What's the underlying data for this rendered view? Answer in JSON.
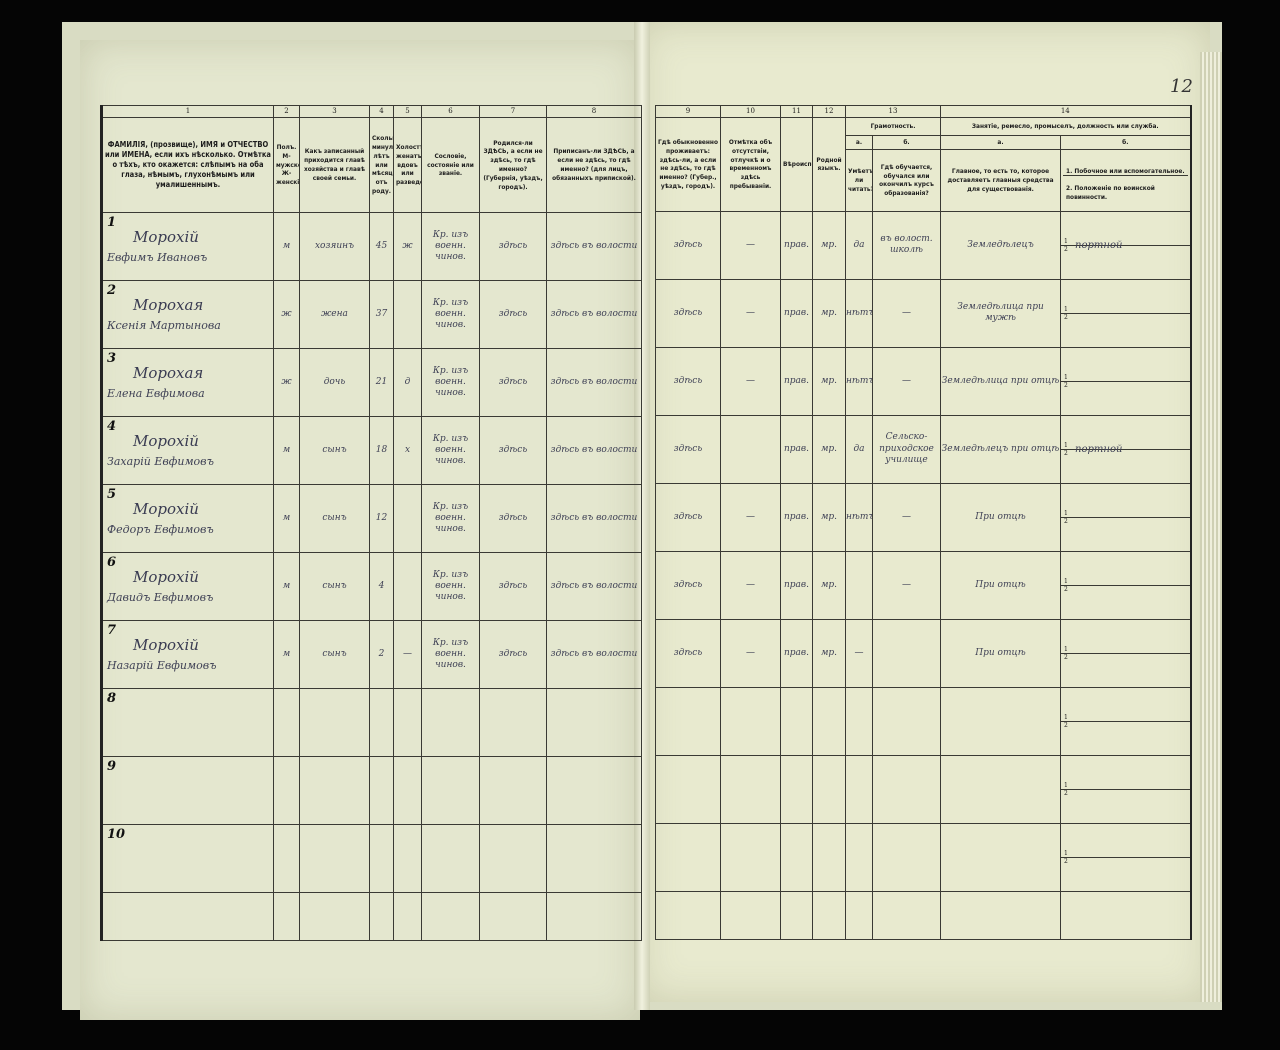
{
  "page_number": "12",
  "headers": {
    "left": [
      {
        "num": "1",
        "text": "ФАМИЛІЯ, (прозвище), ИМЯ и ОТЧЕСТВО или ИМЕНА, если ихъ нѣсколько. Отмѣтка о тѣхъ, кто окажется: слѣпымъ на оба глаза, нѣмымъ, глухонѣмымъ или умалишеннымъ."
      },
      {
        "num": "2",
        "text": "Полъ. М-мужской. Ж-женскій."
      },
      {
        "num": "3",
        "text": "Какъ записанный приходится главѣ хозяйства и главѣ своей семьи."
      },
      {
        "num": "4",
        "text": "Сколько минуло лѣтъ или мѣсяцевъ отъ роду."
      },
      {
        "num": "5",
        "text": "Холостъ, женатъ, вдовъ или разведенъ."
      },
      {
        "num": "6",
        "text": "Сословіе, состояніе или званіе."
      },
      {
        "num": "7",
        "text": "Родился-ли ЗДѢСЬ, а если не здѣсь, то гдѣ именно? (Губернія, уѣздъ, городъ)."
      },
      {
        "num": "8",
        "text": "Приписанъ-ли ЗДѢСЬ, а если не здѣсь, то гдѣ именно? (для лицъ, обязанныхъ припиской)."
      }
    ],
    "right": {
      "col9": {
        "num": "9",
        "text": "Гдѣ обыкновенно проживаетъ: здѣсь-ли, а если не здѣсь, то гдѣ именно? (Губер., уѣздъ, городъ)."
      },
      "col10": {
        "num": "10",
        "text": "Отмѣтка объ отсутствіи, отлучкѣ и о временномъ здѣсь пребываніи."
      },
      "col11": {
        "num": "11",
        "text": "Вѣроисповѣданіе."
      },
      "col12": {
        "num": "12",
        "text": "Родной языкъ."
      },
      "col13": {
        "num": "13",
        "title": "Грамотность.",
        "a_label": "а.",
        "a_text": "Умѣетъ-ли читать?",
        "b_label": "б.",
        "b_text": "Гдѣ обучается, обучался или окончилъ курсъ образованія?"
      },
      "col14": {
        "num": "14",
        "title": "Занятіе, ремесло, промыселъ, должность или служба.",
        "a_label": "а.",
        "a_text": "Главное, то есть то, которое доставляетъ главныя средства для существованія.",
        "b_label": "б.",
        "b1_text": "1. Побочное или вспомогательное.",
        "b2_text": "2. Положеніе по воинской повинности."
      }
    }
  },
  "rows": [
    {
      "n": "1",
      "surname": "Морохій",
      "name": "Евфимъ Ивановъ",
      "sex": "м",
      "relation": "хозяинъ",
      "age": "45",
      "marital": "ж",
      "estate": "Кр. изъ военн. чинов.",
      "born": "здѣсь",
      "registered": "здѣсь въ волости",
      "resides": "здѣсь",
      "absence": "—",
      "religion": "прав.",
      "language": "мр.",
      "reads": "да",
      "school": "въ волост. школѣ",
      "occupation_main": "Земледѣлецъ",
      "occupation_side": "портной",
      "military": ""
    },
    {
      "n": "2",
      "surname": "Морохая",
      "name": "Ксенія Мартынова",
      "sex": "ж",
      "relation": "жена",
      "age": "37",
      "marital": "",
      "estate": "Кр. изъ военн. чинов.",
      "born": "здѣсь",
      "registered": "здѣсь въ волости",
      "resides": "здѣсь",
      "absence": "—",
      "religion": "прав.",
      "language": "мр.",
      "reads": "нѣтъ",
      "school": "—",
      "occupation_main": "Земледѣлица при мужѣ",
      "occupation_side": "",
      "military": ""
    },
    {
      "n": "3",
      "surname": "Морохая",
      "name": "Елена Евфимова",
      "sex": "ж",
      "relation": "дочь",
      "age": "21",
      "marital": "д",
      "estate": "Кр. изъ военн. чинов.",
      "born": "здѣсь",
      "registered": "здѣсь въ волости",
      "resides": "здѣсь",
      "absence": "—",
      "religion": "прав.",
      "language": "мр.",
      "reads": "нѣтъ",
      "school": "—",
      "occupation_main": "Земледѣлица при отцѣ",
      "occupation_side": "",
      "military": ""
    },
    {
      "n": "4",
      "surname": "Морохій",
      "name": "Захарій Евфимовъ",
      "sex": "м",
      "relation": "сынъ",
      "age": "18",
      "marital": "х",
      "estate": "Кр. изъ военн. чинов.",
      "born": "здѣсь",
      "registered": "здѣсь въ волости",
      "resides": "здѣсь",
      "absence": "",
      "religion": "прав.",
      "language": "мр.",
      "reads": "да",
      "school": "Сельско-приходское училище",
      "occupation_main": "Земледѣлецъ при отцѣ",
      "occupation_side": "портной",
      "military": ""
    },
    {
      "n": "5",
      "surname": "Морохій",
      "name": "Федоръ Евфимовъ",
      "sex": "м",
      "relation": "сынъ",
      "age": "12",
      "marital": "",
      "estate": "Кр. изъ военн. чинов.",
      "born": "здѣсь",
      "registered": "здѣсь въ волости",
      "resides": "здѣсь",
      "absence": "—",
      "religion": "прав.",
      "language": "мр.",
      "reads": "нѣтъ",
      "school": "—",
      "occupation_main": "При отцѣ",
      "occupation_side": "",
      "military": ""
    },
    {
      "n": "6",
      "surname": "Морохій",
      "name": "Давидъ Евфимовъ",
      "sex": "м",
      "relation": "сынъ",
      "age": "4",
      "marital": "",
      "estate": "Кр. изъ военн. чинов.",
      "born": "здѣсь",
      "registered": "здѣсь въ волости",
      "resides": "здѣсь",
      "absence": "—",
      "religion": "прав.",
      "language": "мр.",
      "reads": "",
      "school": "—",
      "occupation_main": "При отцѣ",
      "occupation_side": "",
      "military": ""
    },
    {
      "n": "7",
      "surname": "Морохій",
      "name": "Назарій Евфимовъ",
      "sex": "м",
      "relation": "сынъ",
      "age": "2",
      "marital": "—",
      "estate": "Кр. изъ военн. чинов.",
      "born": "здѣсь",
      "registered": "здѣсь въ волости",
      "resides": "здѣсь",
      "absence": "—",
      "religion": "прав.",
      "language": "мр.",
      "reads": "—",
      "school": "",
      "occupation_main": "При отцѣ",
      "occupation_side": "",
      "military": ""
    },
    {
      "n": "8"
    },
    {
      "n": "9"
    },
    {
      "n": "10"
    }
  ],
  "sub_labels": {
    "one": "1",
    "two": "2"
  }
}
